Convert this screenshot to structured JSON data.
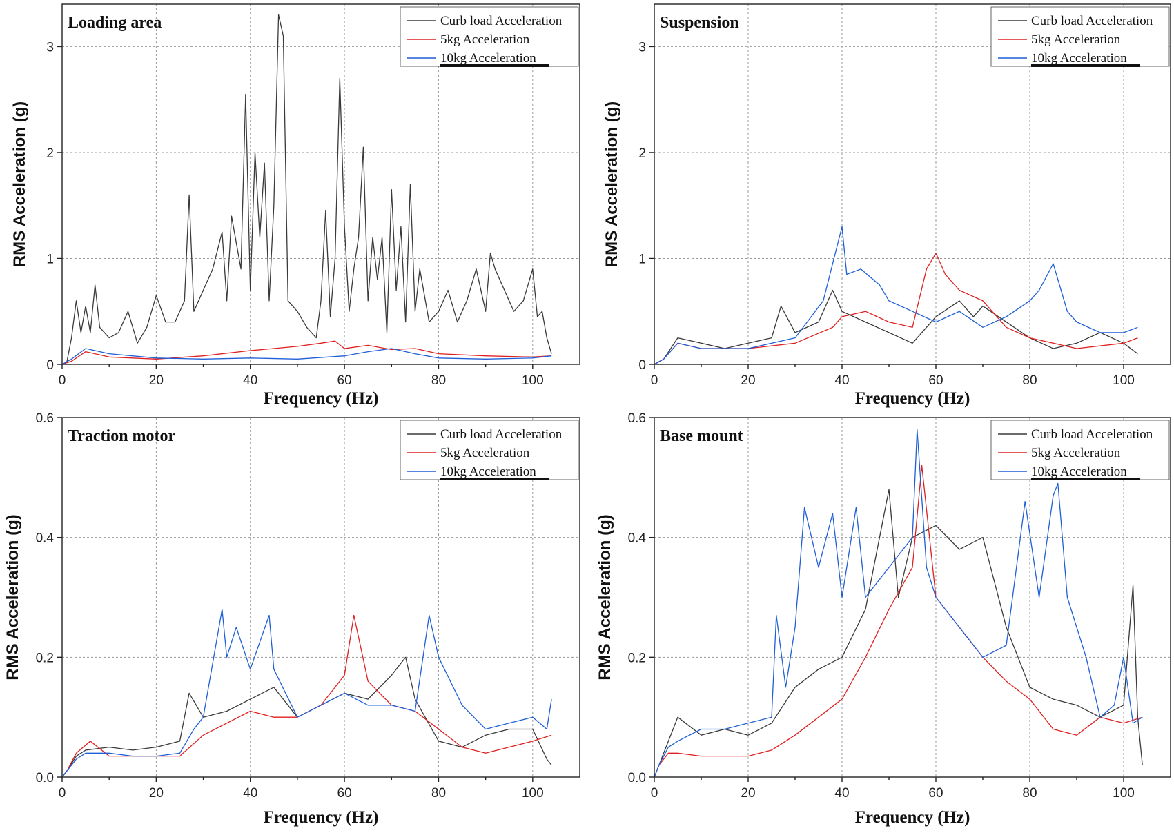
{
  "figure": {
    "panels": [
      {
        "id": "loading-area",
        "title": "Loading area",
        "xlabel": "Frequency (Hz)",
        "ylabel": "RMS Acceleration (g)",
        "xlim": [
          0,
          110
        ],
        "ylim": [
          0,
          3.4
        ],
        "xticks": [
          0,
          20,
          40,
          60,
          80,
          100
        ],
        "yticks": [
          0,
          1,
          2,
          3
        ],
        "ytick_labels": [
          "0",
          "1",
          "2",
          "3"
        ],
        "grid": true,
        "legend_position": "top-right"
      },
      {
        "id": "suspension",
        "title": "Suspension",
        "xlabel": "Frequency (Hz)",
        "ylabel": "RMS Acceleration (g)",
        "xlim": [
          0,
          110
        ],
        "ylim": [
          0,
          3.4
        ],
        "xticks": [
          0,
          20,
          40,
          60,
          80,
          100
        ],
        "yticks": [
          0,
          1,
          2,
          3
        ],
        "ytick_labels": [
          "0",
          "1",
          "2",
          "3"
        ],
        "grid": true,
        "legend_position": "top-right"
      },
      {
        "id": "traction-motor",
        "title": "Traction motor",
        "xlabel": "Frequency (Hz)",
        "ylabel": "RMS Acceleration (g)",
        "xlim": [
          0,
          110
        ],
        "ylim": [
          0,
          0.6
        ],
        "xticks": [
          0,
          20,
          40,
          60,
          80,
          100
        ],
        "yticks": [
          0,
          0.2,
          0.4,
          0.6
        ],
        "ytick_labels": [
          "0.0",
          "0.2",
          "0.4",
          "0.6"
        ],
        "grid": true,
        "legend_position": "top-right"
      },
      {
        "id": "base-mount",
        "title": "Base mount",
        "xlabel": "Frequency (Hz)",
        "ylabel": "RMS Acceleration (g)",
        "xlim": [
          0,
          110
        ],
        "ylim": [
          0,
          0.6
        ],
        "xticks": [
          0,
          20,
          40,
          60,
          80,
          100
        ],
        "yticks": [
          0,
          0.2,
          0.4,
          0.6
        ],
        "ytick_labels": [
          "0.0",
          "0.2",
          "0.4",
          "0.6"
        ],
        "grid": true,
        "legend_position": "top-right"
      }
    ],
    "series_styles": [
      {
        "name": "Curb load Acceleration",
        "color": "#3a3a3a"
      },
      {
        "name": "5kg Acceleration",
        "color": "#e02020"
      },
      {
        "name": "10kg Acceleration",
        "color": "#1f5fd8"
      }
    ]
  },
  "chart_data": [
    {
      "type": "line",
      "title": "Loading area",
      "xlabel": "Frequency (Hz)",
      "ylabel": "RMS Acceleration (g)",
      "xlim": [
        0,
        110
      ],
      "ylim": [
        0,
        3.4
      ],
      "grid": true,
      "legend": "top-right",
      "series": [
        {
          "name": "Curb load Acceleration",
          "x": [
            0,
            1,
            2,
            3,
            4,
            5,
            6,
            7,
            8,
            10,
            12,
            14,
            16,
            18,
            20,
            22,
            24,
            26,
            27,
            28,
            30,
            32,
            34,
            35,
            36,
            38,
            39,
            40,
            41,
            42,
            43,
            44,
            45,
            46,
            47,
            48,
            50,
            52,
            54,
            55,
            56,
            57,
            58,
            59,
            60,
            61,
            62,
            63,
            64,
            65,
            66,
            67,
            68,
            69,
            70,
            71,
            72,
            73,
            74,
            75,
            76,
            78,
            80,
            82,
            84,
            86,
            88,
            90,
            91,
            92,
            94,
            96,
            98,
            100,
            101,
            102,
            103,
            104
          ],
          "y": [
            0,
            0.02,
            0.25,
            0.6,
            0.3,
            0.55,
            0.3,
            0.75,
            0.35,
            0.25,
            0.3,
            0.5,
            0.2,
            0.35,
            0.65,
            0.4,
            0.4,
            0.6,
            1.6,
            0.5,
            0.7,
            0.9,
            1.25,
            0.6,
            1.4,
            0.9,
            2.55,
            0.7,
            2.0,
            1.2,
            1.9,
            0.6,
            1.5,
            3.3,
            3.1,
            0.6,
            0.5,
            0.35,
            0.25,
            0.6,
            1.45,
            0.45,
            1.0,
            2.7,
            1.3,
            0.5,
            0.9,
            1.2,
            2.05,
            0.6,
            1.2,
            0.8,
            1.2,
            0.3,
            1.65,
            0.7,
            1.3,
            0.4,
            1.7,
            0.5,
            0.9,
            0.4,
            0.5,
            0.7,
            0.4,
            0.6,
            0.9,
            0.5,
            1.05,
            0.9,
            0.7,
            0.5,
            0.6,
            0.9,
            0.45,
            0.5,
            0.25,
            0.1
          ]
        },
        {
          "name": "5kg Acceleration",
          "x": [
            0,
            2,
            5,
            10,
            20,
            30,
            40,
            45,
            50,
            55,
            58,
            60,
            65,
            70,
            75,
            80,
            90,
            100,
            104
          ],
          "y": [
            0,
            0.03,
            0.12,
            0.07,
            0.05,
            0.08,
            0.13,
            0.15,
            0.17,
            0.2,
            0.22,
            0.15,
            0.18,
            0.14,
            0.15,
            0.1,
            0.08,
            0.07,
            0.08
          ]
        },
        {
          "name": "10kg Acceleration",
          "x": [
            0,
            2,
            5,
            10,
            20,
            30,
            40,
            50,
            60,
            65,
            70,
            75,
            80,
            90,
            100,
            104
          ],
          "y": [
            0,
            0.05,
            0.15,
            0.1,
            0.06,
            0.05,
            0.06,
            0.05,
            0.08,
            0.12,
            0.15,
            0.1,
            0.06,
            0.05,
            0.06,
            0.08
          ]
        }
      ]
    },
    {
      "type": "line",
      "title": "Suspension",
      "xlabel": "Frequency (Hz)",
      "ylabel": "RMS Acceleration (g)",
      "xlim": [
        0,
        110
      ],
      "ylim": [
        0,
        3.4
      ],
      "grid": true,
      "legend": "top-right",
      "series": [
        {
          "name": "Curb load Acceleration",
          "x": [
            0,
            2,
            5,
            10,
            15,
            20,
            25,
            27,
            30,
            35,
            38,
            40,
            45,
            50,
            55,
            60,
            65,
            68,
            70,
            75,
            80,
            85,
            90,
            95,
            100,
            103
          ],
          "y": [
            0,
            0.05,
            0.25,
            0.2,
            0.15,
            0.2,
            0.25,
            0.55,
            0.3,
            0.4,
            0.7,
            0.5,
            0.4,
            0.3,
            0.2,
            0.45,
            0.6,
            0.45,
            0.55,
            0.4,
            0.25,
            0.15,
            0.2,
            0.3,
            0.2,
            0.1
          ]
        },
        {
          "name": "5kg Acceleration",
          "x": [
            0,
            2,
            5,
            10,
            20,
            30,
            38,
            40,
            45,
            50,
            55,
            58,
            60,
            62,
            65,
            70,
            75,
            80,
            85,
            90,
            100,
            103
          ],
          "y": [
            0,
            0.05,
            0.2,
            0.15,
            0.15,
            0.2,
            0.35,
            0.45,
            0.5,
            0.4,
            0.35,
            0.9,
            1.05,
            0.85,
            0.7,
            0.6,
            0.35,
            0.25,
            0.2,
            0.15,
            0.2,
            0.25
          ]
        },
        {
          "name": "10kg Acceleration",
          "x": [
            0,
            2,
            5,
            10,
            20,
            30,
            36,
            38,
            40,
            41,
            44,
            48,
            50,
            55,
            60,
            65,
            70,
            75,
            80,
            82,
            85,
            88,
            90,
            95,
            100,
            103
          ],
          "y": [
            0,
            0.05,
            0.2,
            0.15,
            0.15,
            0.25,
            0.6,
            0.95,
            1.3,
            0.85,
            0.9,
            0.75,
            0.6,
            0.5,
            0.4,
            0.5,
            0.35,
            0.45,
            0.6,
            0.7,
            0.95,
            0.5,
            0.4,
            0.3,
            0.3,
            0.35
          ]
        }
      ]
    },
    {
      "type": "line",
      "title": "Traction motor",
      "xlabel": "Frequency (Hz)",
      "ylabel": "RMS Acceleration (g)",
      "xlim": [
        0,
        110
      ],
      "ylim": [
        0,
        0.6
      ],
      "grid": true,
      "legend": "top-right",
      "series": [
        {
          "name": "Curb load Acceleration",
          "x": [
            0,
            1,
            3,
            5,
            10,
            15,
            20,
            25,
            27,
            30,
            35,
            40,
            45,
            50,
            55,
            60,
            65,
            70,
            73,
            75,
            80,
            85,
            90,
            95,
            100,
            103,
            104
          ],
          "y": [
            0,
            0.01,
            0.035,
            0.045,
            0.05,
            0.045,
            0.05,
            0.06,
            0.14,
            0.1,
            0.11,
            0.13,
            0.15,
            0.1,
            0.12,
            0.14,
            0.13,
            0.17,
            0.2,
            0.13,
            0.06,
            0.05,
            0.07,
            0.08,
            0.08,
            0.03,
            0.02
          ]
        },
        {
          "name": "5kg Acceleration",
          "x": [
            0,
            1,
            3,
            6,
            10,
            15,
            20,
            25,
            30,
            35,
            40,
            45,
            50,
            55,
            60,
            62,
            65,
            70,
            75,
            80,
            85,
            90,
            95,
            100,
            104
          ],
          "y": [
            0,
            0.01,
            0.04,
            0.06,
            0.035,
            0.035,
            0.035,
            0.035,
            0.07,
            0.09,
            0.11,
            0.1,
            0.1,
            0.12,
            0.17,
            0.27,
            0.16,
            0.12,
            0.11,
            0.08,
            0.05,
            0.04,
            0.05,
            0.06,
            0.07
          ]
        },
        {
          "name": "10kg Acceleration",
          "x": [
            0,
            1,
            3,
            5,
            10,
            15,
            20,
            25,
            28,
            30,
            34,
            35,
            37,
            40,
            44,
            45,
            50,
            55,
            60,
            65,
            70,
            75,
            78,
            80,
            85,
            90,
            95,
            100,
            103,
            104
          ],
          "y": [
            0,
            0.01,
            0.03,
            0.04,
            0.04,
            0.035,
            0.035,
            0.04,
            0.08,
            0.1,
            0.28,
            0.2,
            0.25,
            0.18,
            0.27,
            0.18,
            0.1,
            0.12,
            0.14,
            0.12,
            0.12,
            0.11,
            0.27,
            0.2,
            0.12,
            0.08,
            0.09,
            0.1,
            0.08,
            0.13
          ]
        }
      ]
    },
    {
      "type": "line",
      "title": "Base mount",
      "xlabel": "Frequency (Hz)",
      "ylabel": "RMS Acceleration (g)",
      "xlim": [
        0,
        110
      ],
      "ylim": [
        0,
        0.6
      ],
      "grid": true,
      "legend": "top-right",
      "series": [
        {
          "name": "Curb load Acceleration",
          "x": [
            0,
            1,
            3,
            5,
            10,
            15,
            20,
            25,
            30,
            35,
            40,
            45,
            50,
            52,
            55,
            60,
            65,
            70,
            75,
            80,
            85,
            90,
            95,
            100,
            102,
            103,
            104
          ],
          "y": [
            0,
            0.02,
            0.06,
            0.1,
            0.07,
            0.08,
            0.07,
            0.09,
            0.15,
            0.18,
            0.2,
            0.28,
            0.48,
            0.3,
            0.4,
            0.42,
            0.38,
            0.4,
            0.25,
            0.15,
            0.13,
            0.12,
            0.1,
            0.12,
            0.32,
            0.1,
            0.02
          ]
        },
        {
          "name": "5kg Acceleration",
          "x": [
            0,
            1,
            3,
            5,
            10,
            15,
            20,
            25,
            30,
            35,
            40,
            45,
            50,
            55,
            57,
            60,
            65,
            70,
            75,
            80,
            85,
            90,
            95,
            100,
            104
          ],
          "y": [
            0,
            0.02,
            0.04,
            0.04,
            0.035,
            0.035,
            0.035,
            0.045,
            0.07,
            0.1,
            0.13,
            0.2,
            0.28,
            0.35,
            0.52,
            0.3,
            0.25,
            0.2,
            0.16,
            0.13,
            0.08,
            0.07,
            0.1,
            0.09,
            0.1
          ]
        },
        {
          "name": "10kg Acceleration",
          "x": [
            0,
            1,
            3,
            5,
            10,
            15,
            20,
            25,
            26,
            28,
            30,
            32,
            35,
            38,
            40,
            43,
            45,
            50,
            55,
            56,
            58,
            60,
            65,
            70,
            75,
            79,
            82,
            85,
            86,
            88,
            90,
            92,
            95,
            98,
            100,
            102,
            104
          ],
          "y": [
            0,
            0.02,
            0.05,
            0.06,
            0.08,
            0.08,
            0.09,
            0.1,
            0.27,
            0.15,
            0.25,
            0.45,
            0.35,
            0.44,
            0.3,
            0.45,
            0.3,
            0.35,
            0.4,
            0.58,
            0.35,
            0.3,
            0.25,
            0.2,
            0.22,
            0.46,
            0.3,
            0.47,
            0.49,
            0.3,
            0.25,
            0.2,
            0.1,
            0.12,
            0.2,
            0.09,
            0.1
          ]
        }
      ]
    }
  ]
}
